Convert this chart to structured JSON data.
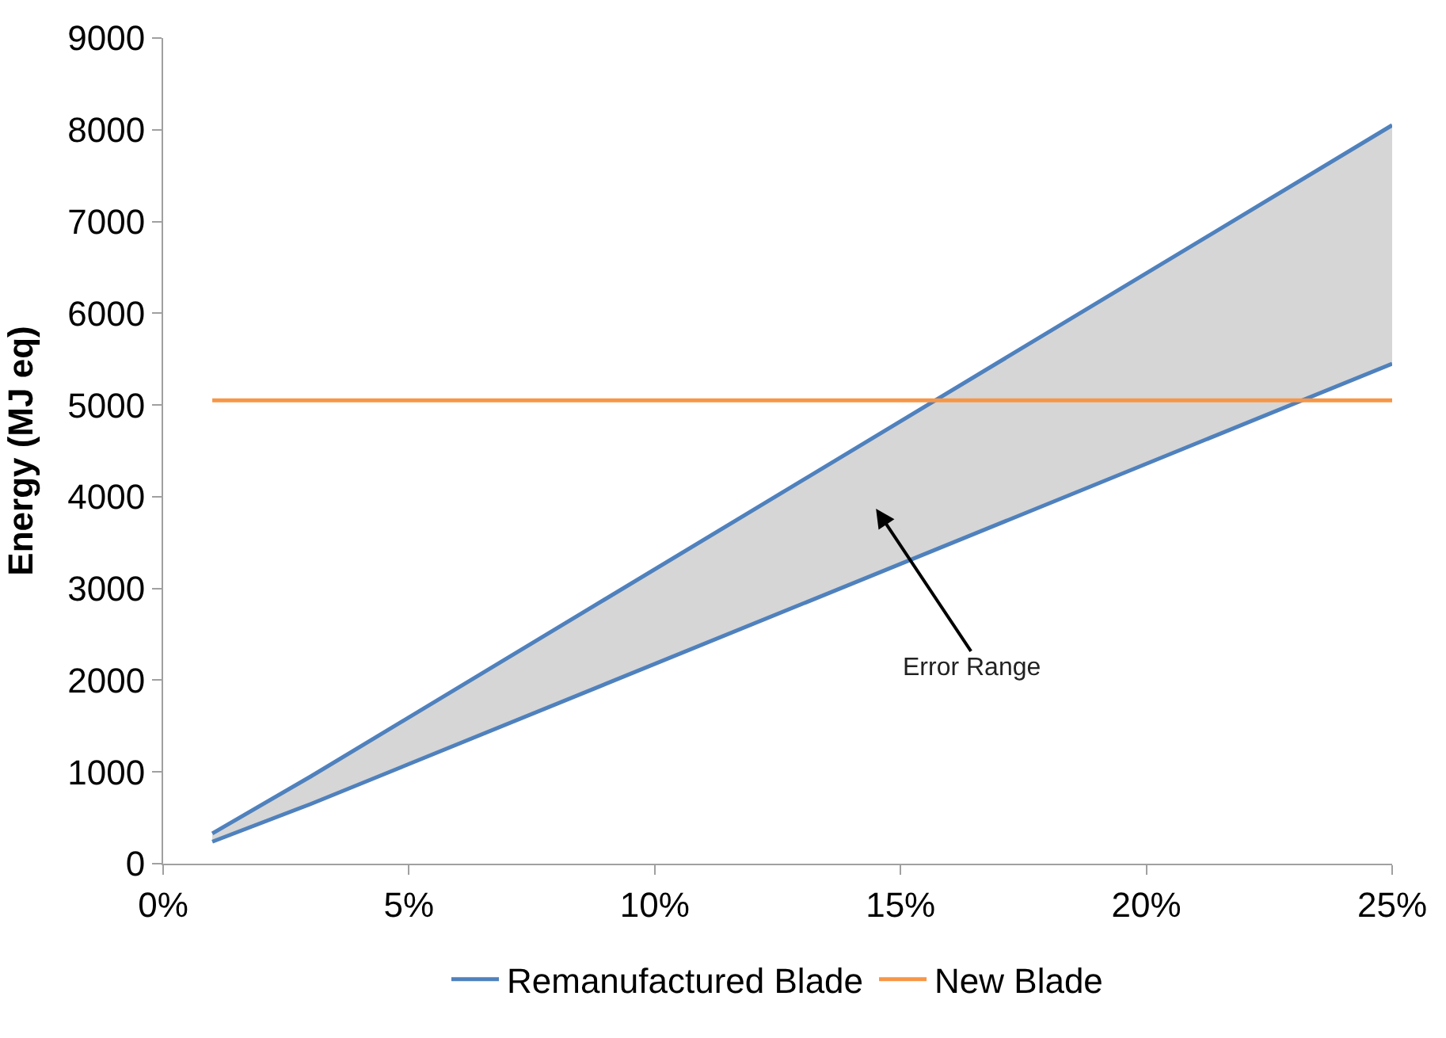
{
  "chart_data": {
    "type": "line",
    "ylabel": "Energy (MJ eq)",
    "series": [
      {
        "name": "Remanufactured Blade",
        "color": "#4f81bd",
        "x": [
          1,
          3,
          25
        ],
        "values": [
          330,
          950,
          8050
        ],
        "lower": [
          240,
          650,
          5450
        ],
        "upper": [
          330,
          950,
          8050
        ]
      },
      {
        "color": "#4f81bd",
        "x": [
          1,
          3,
          25
        ],
        "values": [
          240,
          650,
          5450
        ]
      },
      {
        "name": "New Blade",
        "color": "#f79646",
        "x": [
          1,
          25
        ],
        "values": [
          5050,
          5050
        ]
      }
    ],
    "xlim": [
      0,
      25
    ],
    "xticks": [
      {
        "value": 0,
        "label": "0%"
      },
      {
        "value": 5,
        "label": "5%"
      },
      {
        "value": 10,
        "label": "10%"
      },
      {
        "value": 15,
        "label": "15%"
      },
      {
        "value": 20,
        "label": "20%"
      },
      {
        "value": 25,
        "label": "25%"
      }
    ],
    "ylim": [
      0,
      9000
    ],
    "yticks": [
      0,
      1000,
      2000,
      3000,
      4000,
      5000,
      6000,
      7000,
      8000,
      9000
    ],
    "annotations": [
      "Error Range"
    ],
    "legend": "bottom",
    "marker": "none",
    "line_style": "solid"
  }
}
